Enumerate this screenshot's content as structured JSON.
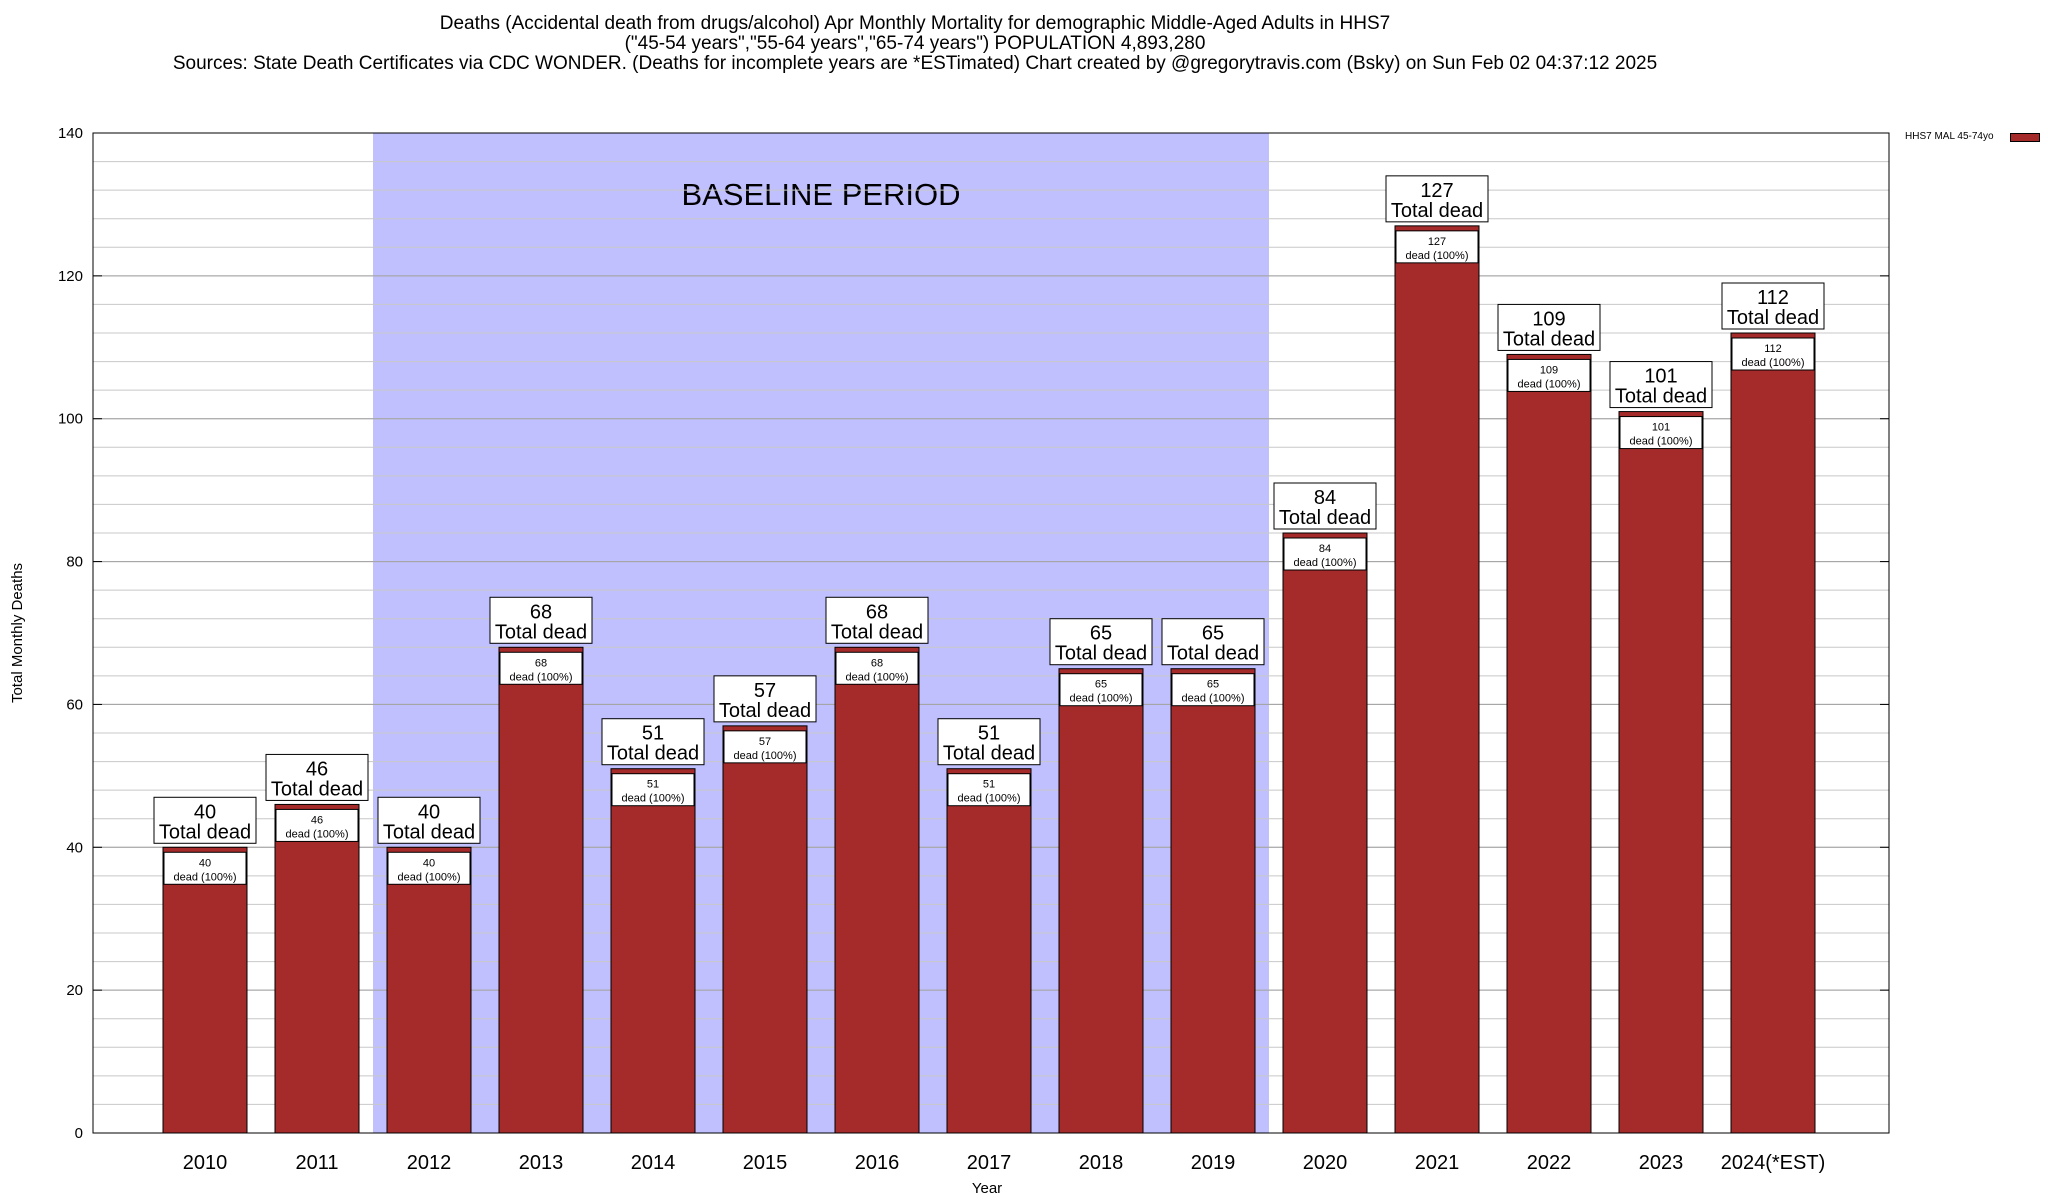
{
  "title": {
    "line1": "Deaths (Accidental death from drugs/alcohol) Apr Monthly Mortality for demographic Middle-Aged Adults in HHS7",
    "line2": "(\"45-54 years\",\"55-64 years\",\"65-74 years\") POPULATION 4,893,280",
    "line3": "Sources: State Death Certificates via CDC WONDER. (Deaths for incomplete years are *ESTimated)                Chart created by @gregorytravis.com (Bsky) on Sun Feb 02 04:37:12 2025"
  },
  "legend": {
    "label": "HHS7 MAL 45-74yo",
    "color": "#a52a2a"
  },
  "chart_data": {
    "type": "bar",
    "xlabel": "Year",
    "ylabel": "Total Monthly Deaths",
    "ylim": [
      0,
      140
    ],
    "yticks": [
      0,
      20,
      40,
      60,
      80,
      100,
      120,
      140
    ],
    "grid": true,
    "categories": [
      "2010",
      "2011",
      "2012",
      "2013",
      "2014",
      "2015",
      "2016",
      "2017",
      "2018",
      "2019",
      "2020",
      "2021",
      "2022",
      "2023",
      "2024(*EST)"
    ],
    "series": [
      {
        "name": "HHS7 MAL 45-74yo",
        "values": [
          40,
          46,
          40,
          68,
          51,
          57,
          68,
          51,
          65,
          65,
          84,
          127,
          109,
          101,
          112
        ]
      }
    ],
    "bar_color": "#a52a2a",
    "baseline_period": {
      "label": "BASELINE PERIOD",
      "from": "2012",
      "to": "2019",
      "color": "#c0c0ff"
    },
    "label_total_text": "Total dead",
    "label_inner_text": "dead (100%)"
  }
}
